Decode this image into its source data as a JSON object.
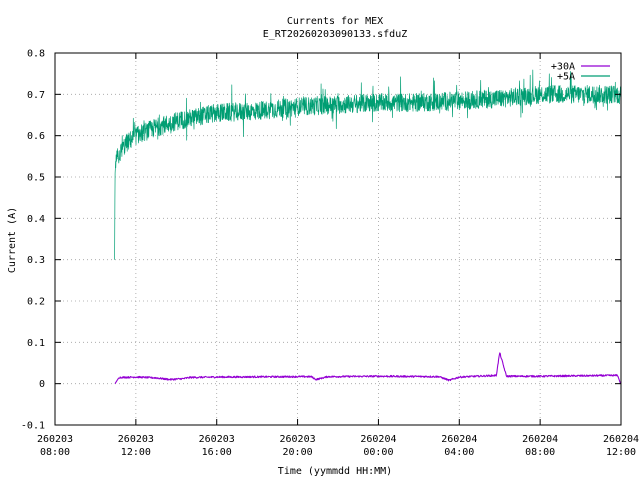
{
  "chart_data": {
    "type": "line",
    "title": "Currents for MEX",
    "subtitle": "E_RT20260203090133.sfduZ",
    "xlabel": "Time (yymmdd HH:MM)",
    "ylabel": "Current (A)",
    "ylim": [
      -0.1,
      0.8
    ],
    "y_ticks": [
      "-0.1",
      "0",
      "0.1",
      "0.2",
      "0.3",
      "0.4",
      "0.5",
      "0.6",
      "0.7",
      "0.8"
    ],
    "xlim_hours": [
      0,
      28
    ],
    "x_ticks": [
      {
        "date": "260203",
        "time": "08:00"
      },
      {
        "date": "260203",
        "time": "12:00"
      },
      {
        "date": "260203",
        "time": "16:00"
      },
      {
        "date": "260203",
        "time": "20:00"
      },
      {
        "date": "260204",
        "time": "00:00"
      },
      {
        "date": "260204",
        "time": "04:00"
      },
      {
        "date": "260204",
        "time": "08:00"
      },
      {
        "date": "260204",
        "time": "12:00"
      }
    ],
    "grid": true,
    "legend_position": "top-right",
    "series": [
      {
        "name": "+30A",
        "color": "#9400d3",
        "x": [
          "260203 10:58",
          "260203 11:10",
          "260203 12:00",
          "260203 13:00",
          "260203 13:40",
          "260203 14:20",
          "260203 14:40",
          "260203 16:00",
          "260203 20:00",
          "260203 20:40",
          "260203 20:55",
          "260203 21:30",
          "260204 00:00",
          "260204 03:00",
          "260204 03:30",
          "260204 04:00",
          "260204 05:50",
          "260204 06:00",
          "260204 06:20",
          "260204 08:00",
          "260204 11:50",
          "260204 12:00"
        ],
        "y": [
          0.0,
          0.015,
          0.016,
          0.014,
          0.01,
          0.012,
          0.015,
          0.016,
          0.017,
          0.017,
          0.01,
          0.017,
          0.018,
          0.017,
          0.008,
          0.016,
          0.02,
          0.075,
          0.018,
          0.018,
          0.02,
          -0.003
        ]
      },
      {
        "name": "+5A",
        "color": "#009e73",
        "x": [
          "260203 10:57",
          "260203 10:58",
          "260203 11:00",
          "260203 11:30",
          "260203 12:00",
          "260203 13:00",
          "260203 14:00",
          "260203 16:00",
          "260203 18:00",
          "260203 20:00",
          "260203 22:00",
          "260204 00:00",
          "260204 02:00",
          "260204 04:00",
          "260204 06:00",
          "260204 08:00",
          "260204 10:00",
          "260204 12:00"
        ],
        "y": [
          0.3,
          0.5,
          0.54,
          0.58,
          0.6,
          0.62,
          0.635,
          0.655,
          0.66,
          0.67,
          0.675,
          0.68,
          0.68,
          0.685,
          0.69,
          0.7,
          0.7,
          0.7
        ]
      }
    ]
  }
}
